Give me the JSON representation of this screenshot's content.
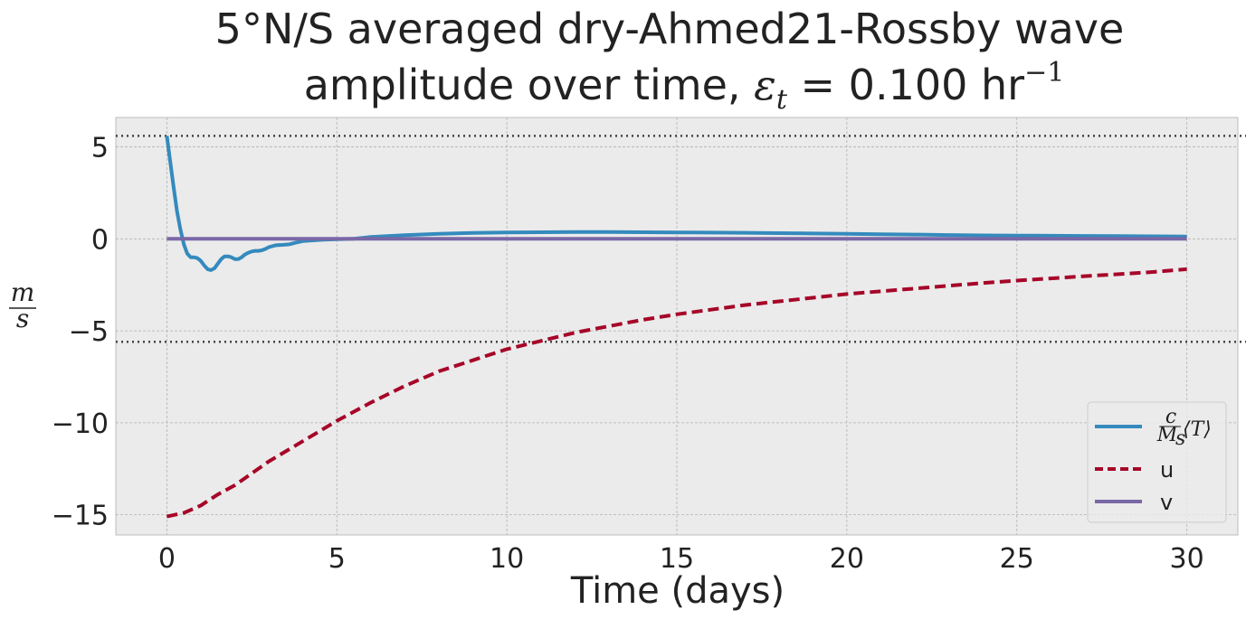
{
  "chart_data": {
    "type": "line",
    "title_line1": "5°N/S averaged dry-Ahmed21-Rossby wave",
    "title_line2_prefix": "amplitude over time, ",
    "title_line2_symbol": "ε",
    "title_line2_symbol_sub": "t",
    "title_line2_value": " = 0.100 hr",
    "title_line2_exp": "−1",
    "xlabel": "Time (days)",
    "ylabel_num": "m",
    "ylabel_den": "s",
    "xlim": [
      -1.5,
      31.5
    ],
    "ylim": [
      -16.1,
      6.6
    ],
    "xticks": [
      0,
      5,
      10,
      15,
      20,
      25,
      30
    ],
    "xtick_labels": [
      "0",
      "5",
      "10",
      "15",
      "20",
      "25",
      "30"
    ],
    "yticks": [
      5,
      0,
      -5,
      -10,
      -15
    ],
    "ytick_labels": [
      "5",
      "0",
      "−5",
      "−10",
      "−15"
    ],
    "grid": true,
    "background": "#ebebeb",
    "reference_lines": [
      5.6,
      -5.6
    ],
    "legend_position": "lower-right",
    "series": [
      {
        "name": "c/Ms ⟨T⟩",
        "color": "#348abd",
        "dash": "solid",
        "x": [
          0,
          0.1,
          0.2,
          0.3,
          0.4,
          0.5,
          0.6,
          0.7,
          0.8,
          0.9,
          1.0,
          1.1,
          1.2,
          1.3,
          1.4,
          1.5,
          1.6,
          1.7,
          1.8,
          1.9,
          2.0,
          2.1,
          2.2,
          2.3,
          2.4,
          2.5,
          2.6,
          2.7,
          2.8,
          2.9,
          3.0,
          3.2,
          3.4,
          3.6,
          3.8,
          4.0,
          4.3,
          4.6,
          5.0,
          5.5,
          6,
          7,
          8,
          9,
          10,
          11,
          12,
          13,
          14,
          15,
          16,
          17,
          18,
          19,
          20,
          21,
          22,
          23,
          24,
          25,
          26,
          27,
          28,
          29,
          30
        ],
        "values": [
          5.6,
          4.2,
          2.8,
          1.5,
          0.5,
          -0.3,
          -0.8,
          -1.0,
          -1.0,
          -1.05,
          -1.2,
          -1.45,
          -1.65,
          -1.7,
          -1.6,
          -1.35,
          -1.1,
          -0.95,
          -0.95,
          -1.0,
          -1.1,
          -1.1,
          -1.0,
          -0.85,
          -0.75,
          -0.68,
          -0.65,
          -0.65,
          -0.62,
          -0.55,
          -0.45,
          -0.35,
          -0.33,
          -0.3,
          -0.2,
          -0.12,
          -0.08,
          -0.05,
          -0.02,
          0.0,
          0.1,
          0.2,
          0.27,
          0.32,
          0.35,
          0.36,
          0.37,
          0.37,
          0.36,
          0.35,
          0.34,
          0.33,
          0.31,
          0.29,
          0.27,
          0.25,
          0.23,
          0.21,
          0.19,
          0.18,
          0.17,
          0.16,
          0.15,
          0.14,
          0.13
        ]
      },
      {
        "name": "u",
        "color": "#a60628",
        "dash": "dashed",
        "x": [
          0,
          0.5,
          1,
          1.5,
          2,
          3,
          4,
          5,
          6,
          7,
          8,
          9,
          10,
          11,
          12,
          13,
          14,
          15,
          16,
          17,
          18,
          19,
          20,
          21,
          22,
          23,
          24,
          25,
          26,
          27,
          28,
          29,
          30
        ],
        "values": [
          -15.1,
          -14.9,
          -14.5,
          -13.9,
          -13.4,
          -12.1,
          -11.0,
          -9.9,
          -8.9,
          -8.0,
          -7.2,
          -6.6,
          -6.0,
          -5.55,
          -5.1,
          -4.75,
          -4.4,
          -4.1,
          -3.85,
          -3.6,
          -3.4,
          -3.2,
          -3.0,
          -2.85,
          -2.7,
          -2.55,
          -2.4,
          -2.27,
          -2.15,
          -2.03,
          -1.92,
          -1.8,
          -1.65
        ]
      },
      {
        "name": "v",
        "color": "#7a68a6",
        "dash": "solid",
        "x": [
          0,
          30
        ],
        "values": [
          0,
          0
        ]
      }
    ],
    "legend_entries": [
      {
        "math": true,
        "label_num": "c",
        "label_den": "M",
        "label_den_sub": "s",
        "label_main": "⟨T⟩"
      },
      {
        "math": false,
        "label": "u"
      },
      {
        "math": false,
        "label": "v"
      }
    ]
  }
}
